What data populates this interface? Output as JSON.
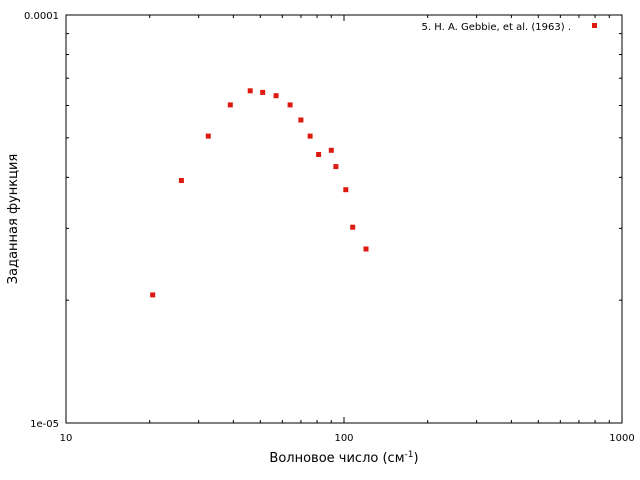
{
  "chart_data": {
    "type": "scatter",
    "xscale": "log",
    "yscale": "log",
    "xlim": [
      10,
      1000
    ],
    "ylim": [
      1e-05,
      0.0001
    ],
    "xlabel": "Волновое число (см",
    "xlabel_sup": "-1",
    "xlabel_end": ")",
    "ylabel": "Заданная функция",
    "x_ticks": [
      "10",
      "100",
      "1000"
    ],
    "y_ticks": [
      "1e-05",
      "0.0001"
    ],
    "legend_position": "top-right",
    "series": [
      {
        "name": "5. H. A. Gebbie, et al. (1963) .",
        "color": "#dd1a0f",
        "x": [
          20.5,
          26,
          32.5,
          39,
          46,
          51,
          57,
          64,
          70,
          75.5,
          81,
          90,
          93.5,
          101.5,
          107.5,
          120
        ],
        "y": [
          2.06e-05,
          3.93e-05,
          5.05e-05,
          6.02e-05,
          6.52e-05,
          6.46e-05,
          6.34e-05,
          6.02e-05,
          5.53e-05,
          5.05e-05,
          4.55e-05,
          4.66e-05,
          4.25e-05,
          3.73e-05,
          3.02e-05,
          2.67e-05
        ]
      }
    ]
  }
}
